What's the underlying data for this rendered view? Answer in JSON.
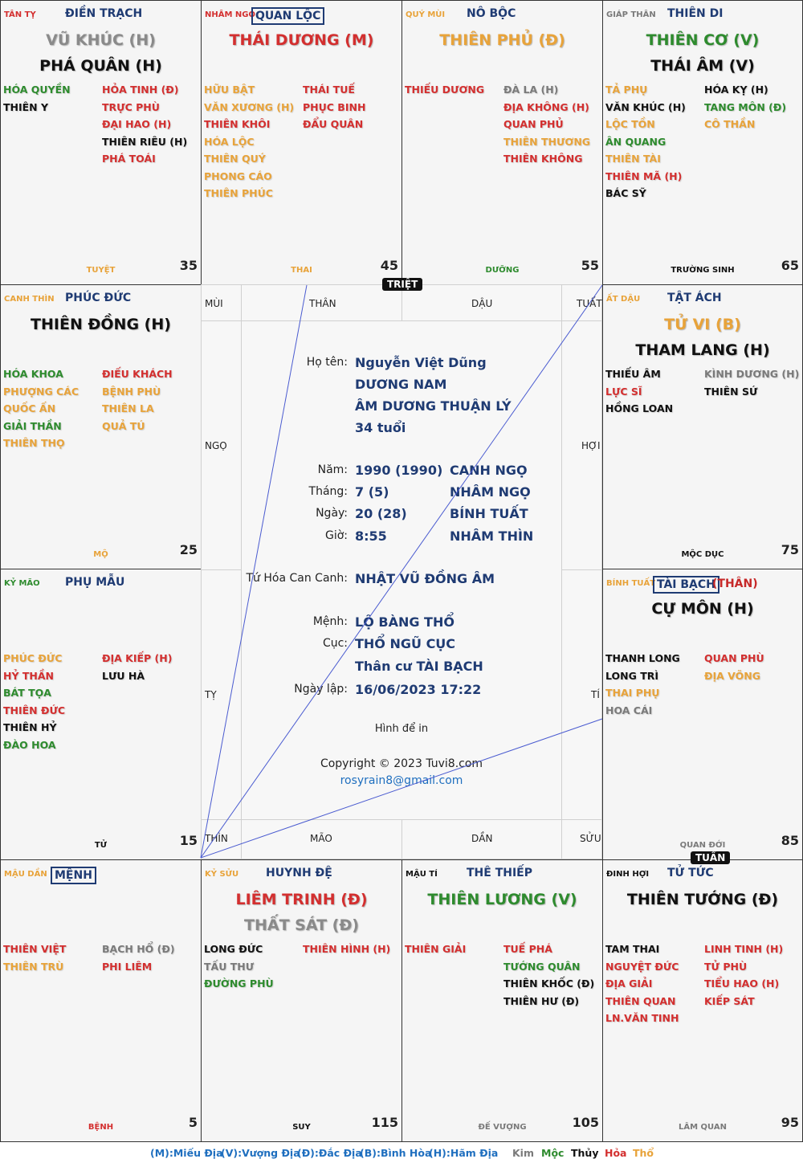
{
  "palaces": [
    {
      "can": "TÂN TỴ",
      "can_color": "#d32f2f",
      "name": "ĐIỀN TRẠCH",
      "boxed": false,
      "main": [
        {
          "text": "VŨ KHÚC (H)",
          "color": "#8a8a8a"
        },
        {
          "text": "PHÁ QUÂN (H)",
          "color": "#111111"
        }
      ],
      "left": [
        {
          "text": "HÓA QUYỀN",
          "color": "#2e8b2e"
        },
        {
          "text": "THIÊN Y",
          "color": "#111111"
        }
      ],
      "right": [
        {
          "text": "HỎA TINH (Đ)",
          "color": "#d32f2f"
        },
        {
          "text": "TRỰC PHÙ",
          "color": "#d32f2f"
        },
        {
          "text": "ĐẠI HAO (H)",
          "color": "#d32f2f"
        },
        {
          "text": "THIÊN RIÊU (H)",
          "color": "#111111"
        },
        {
          "text": "PHÁ TOÁI",
          "color": "#d32f2f"
        }
      ],
      "stage": "TUYỆT",
      "stage_color": "#e8a33a",
      "age": "35"
    },
    {
      "can": "NHÂM NGỌ",
      "can_color": "#d32f2f",
      "name": "QUAN LỘC",
      "boxed": true,
      "main": [
        {
          "text": "THÁI DƯƠNG (M)",
          "color": "#d32f2f"
        }
      ],
      "left": [
        {
          "text": "HỮU BẬT",
          "color": "#e8a33a"
        },
        {
          "text": "VĂN XƯƠNG (H)",
          "color": "#e8a33a"
        },
        {
          "text": "THIÊN KHÔI",
          "color": "#d32f2f"
        },
        {
          "text": "HÓA LỘC",
          "color": "#e8a33a"
        },
        {
          "text": "THIÊN QUÝ",
          "color": "#e8a33a"
        },
        {
          "text": "PHONG CÁO",
          "color": "#e8a33a"
        },
        {
          "text": "THIÊN PHÚC",
          "color": "#e8a33a"
        }
      ],
      "right": [
        {
          "text": "THÁI TUẾ",
          "color": "#d32f2f"
        },
        {
          "text": "PHỤC BINH",
          "color": "#d32f2f"
        },
        {
          "text": "ĐẨU QUÂN",
          "color": "#d32f2f"
        }
      ],
      "stage": "THAI",
      "stage_color": "#e8a33a",
      "age": "45"
    },
    {
      "can": "QUÝ MÙI",
      "can_color": "#e8a33a",
      "name": "NÔ BỘC",
      "boxed": false,
      "main": [
        {
          "text": "THIÊN PHỦ (Đ)",
          "color": "#e8a33a"
        }
      ],
      "left": [
        {
          "text": "THIẾU DƯƠNG",
          "color": "#d32f2f"
        }
      ],
      "right": [
        {
          "text": "ĐÀ LA (H)",
          "color": "#7a7a7a"
        },
        {
          "text": "ĐỊA KHÔNG (H)",
          "color": "#d32f2f"
        },
        {
          "text": "QUAN PHỦ",
          "color": "#d32f2f"
        },
        {
          "text": "THIÊN THƯƠNG",
          "color": "#e8a33a"
        },
        {
          "text": "THIÊN KHÔNG",
          "color": "#d32f2f"
        }
      ],
      "stage": "DƯỠNG",
      "stage_color": "#2e8b2e",
      "age": "55"
    },
    {
      "can": "GIÁP THÂN",
      "can_color": "#7a7a7a",
      "name": "THIÊN DI",
      "boxed": false,
      "main": [
        {
          "text": "THIÊN CƠ (V)",
          "color": "#2e8b2e"
        },
        {
          "text": "THÁI ÂM (V)",
          "color": "#111111"
        }
      ],
      "left": [
        {
          "text": "TẢ PHỤ",
          "color": "#e8a33a"
        },
        {
          "text": "VĂN KHÚC (H)",
          "color": "#111111"
        },
        {
          "text": "LỘC TỒN",
          "color": "#e8a33a"
        },
        {
          "text": "ÂN QUANG",
          "color": "#2e8b2e"
        },
        {
          "text": "THIÊN TÀI",
          "color": "#e8a33a"
        },
        {
          "text": "THIÊN MÃ (H)",
          "color": "#d32f2f"
        },
        {
          "text": "BÁC SỸ",
          "color": "#111111"
        }
      ],
      "right": [
        {
          "text": "HÓA KỴ (H)",
          "color": "#111111"
        },
        {
          "text": "TANG MÔN (Đ)",
          "color": "#2e8b2e"
        },
        {
          "text": "CÔ THẦN",
          "color": "#e8a33a"
        }
      ],
      "stage": "TRƯỜNG SINH",
      "stage_color": "#111111",
      "age": "65"
    },
    {
      "can": "CANH THÌN",
      "can_color": "#e8a33a",
      "name": "PHÚC ĐỨC",
      "boxed": false,
      "main": [
        {
          "text": "THIÊN ĐỒNG (H)",
          "color": "#111111"
        }
      ],
      "left": [
        {
          "text": "HÓA KHOA",
          "color": "#2e8b2e"
        },
        {
          "text": "PHƯỢNG CÁC",
          "color": "#e8a33a"
        },
        {
          "text": "QUỐC ẤN",
          "color": "#e8a33a"
        },
        {
          "text": "GIẢI THẦN",
          "color": "#2e8b2e"
        },
        {
          "text": "THIÊN THỌ",
          "color": "#e8a33a"
        }
      ],
      "right": [
        {
          "text": "ĐIẾU KHÁCH",
          "color": "#d32f2f"
        },
        {
          "text": "BỆNH PHÙ",
          "color": "#e8a33a"
        },
        {
          "text": "THIÊN LA",
          "color": "#e8a33a"
        },
        {
          "text": "QUẢ TÚ",
          "color": "#e8a33a"
        }
      ],
      "stage": "MỘ",
      "stage_color": "#e8a33a",
      "age": "25"
    },
    {
      "can": "ẤT DẬU",
      "can_color": "#e8a33a",
      "name": "TẬT ÁCH",
      "boxed": false,
      "main": [
        {
          "text": "TỬ VI (B)",
          "color": "#e8a33a"
        },
        {
          "text": "THAM LANG (H)",
          "color": "#111111"
        }
      ],
      "left": [
        {
          "text": "THIẾU ÂM",
          "color": "#111111"
        },
        {
          "text": "LỰC SĨ",
          "color": "#d32f2f"
        },
        {
          "text": "HỒNG LOAN",
          "color": "#111111"
        }
      ],
      "right": [
        {
          "text": "KÌNH DƯƠNG (H)",
          "color": "#7a7a7a"
        },
        {
          "text": "THIÊN SỨ",
          "color": "#111111"
        }
      ],
      "stage": "MỘC DỤC",
      "stage_color": "#111111",
      "age": "75"
    },
    {
      "can": "KỶ MÃO",
      "can_color": "#2e8b2e",
      "name": "PHỤ MẪU",
      "boxed": false,
      "main": [],
      "left": [
        {
          "text": "PHÚC ĐỨC",
          "color": "#e8a33a"
        },
        {
          "text": "HỶ THẦN",
          "color": "#d32f2f"
        },
        {
          "text": "BÁT TỌA",
          "color": "#2e8b2e"
        },
        {
          "text": "THIÊN ĐỨC",
          "color": "#d32f2f"
        },
        {
          "text": "THIÊN HỶ",
          "color": "#111111"
        },
        {
          "text": "ĐÀO HOA",
          "color": "#2e8b2e"
        }
      ],
      "right": [
        {
          "text": "ĐỊA KIẾP (H)",
          "color": "#d32f2f"
        },
        {
          "text": "LƯU HÀ",
          "color": "#111111"
        }
      ],
      "stage": "TỬ",
      "stage_color": "#111111",
      "age": "15"
    },
    {
      "can": "BÍNH TUẤT",
      "can_color": "#e8a33a",
      "name": "TÀI BẠCH",
      "boxed": true,
      "than": "(THÂN)",
      "main": [
        {
          "text": "CỰ MÔN (H)",
          "color": "#111111"
        }
      ],
      "left": [
        {
          "text": "THANH LONG",
          "color": "#111111"
        },
        {
          "text": "LONG TRÌ",
          "color": "#111111"
        },
        {
          "text": "THAI PHỤ",
          "color": "#e8a33a"
        },
        {
          "text": "HOA CÁI",
          "color": "#7a7a7a"
        }
      ],
      "right": [
        {
          "text": "QUAN PHÙ",
          "color": "#d32f2f"
        },
        {
          "text": "ĐỊA VÕNG",
          "color": "#e8a33a"
        }
      ],
      "stage": "QUAN ĐỚI",
      "stage_color": "#7a7a7a",
      "age": "85"
    },
    {
      "can": "MẬU DẦN",
      "can_color": "#e8a33a",
      "name": "MỆNH",
      "boxed": true,
      "main": [],
      "left": [
        {
          "text": "THIÊN VIỆT",
          "color": "#d32f2f"
        },
        {
          "text": "THIÊN TRÙ",
          "color": "#e8a33a"
        }
      ],
      "right": [
        {
          "text": "BẠCH HỔ (Đ)",
          "color": "#7a7a7a"
        },
        {
          "text": "PHI LIÊM",
          "color": "#d32f2f"
        }
      ],
      "stage": "BỆNH",
      "stage_color": "#d32f2f",
      "age": "5"
    },
    {
      "can": "KỶ SỬU",
      "can_color": "#e8a33a",
      "name": "HUYNH ĐỆ",
      "boxed": false,
      "main": [
        {
          "text": "LIÊM TRINH (Đ)",
          "color": "#d32f2f"
        },
        {
          "text": "THẤT SÁT (Đ)",
          "color": "#8a8a8a"
        }
      ],
      "left": [
        {
          "text": "LONG ĐỨC",
          "color": "#111111"
        },
        {
          "text": "TẤU THƯ",
          "color": "#7a7a7a"
        },
        {
          "text": "ĐƯỜNG PHÙ",
          "color": "#2e8b2e"
        }
      ],
      "right": [
        {
          "text": "THIÊN HÌNH (H)",
          "color": "#d32f2f"
        }
      ],
      "stage": "SUY",
      "stage_color": "#111111",
      "age": "115"
    },
    {
      "can": "MẬU TÍ",
      "can_color": "#111111",
      "name": "THÊ THIẾP",
      "boxed": false,
      "main": [
        {
          "text": "THIÊN LƯƠNG (V)",
          "color": "#2e8b2e"
        }
      ],
      "left": [
        {
          "text": "THIÊN GIẢI",
          "color": "#d32f2f"
        }
      ],
      "right": [
        {
          "text": "TUẾ PHÁ",
          "color": "#d32f2f"
        },
        {
          "text": "TƯỚNG QUÂN",
          "color": "#2e8b2e"
        },
        {
          "text": "THIÊN KHỐC (Đ)",
          "color": "#111111"
        },
        {
          "text": "THIÊN HƯ (Đ)",
          "color": "#111111"
        }
      ],
      "stage": "ĐẾ VƯỢNG",
      "stage_color": "#7a7a7a",
      "age": "105"
    },
    {
      "can": "ĐINH HỢI",
      "can_color": "#111111",
      "name": "TỬ TỨC",
      "boxed": false,
      "main": [
        {
          "text": "THIÊN TƯỚNG (Đ)",
          "color": "#111111"
        }
      ],
      "left": [
        {
          "text": "TAM THAI",
          "color": "#111111"
        },
        {
          "text": "NGUYỆT ĐỨC",
          "color": "#d32f2f"
        },
        {
          "text": "ĐỊA GIẢI",
          "color": "#d32f2f"
        },
        {
          "text": "THIÊN QUAN",
          "color": "#d32f2f"
        },
        {
          "text": "LN.VĂN TINH",
          "color": "#d32f2f"
        }
      ],
      "right": [
        {
          "text": "LINH TINH (H)",
          "color": "#d32f2f"
        },
        {
          "text": "TỬ PHÙ",
          "color": "#d32f2f"
        },
        {
          "text": "TIỂU HAO (H)",
          "color": "#d32f2f"
        },
        {
          "text": "KIẾP SÁT",
          "color": "#d32f2f"
        }
      ],
      "stage": "LÂM QUAN",
      "stage_color": "#7a7a7a",
      "age": "95"
    }
  ],
  "center": {
    "ring_labels": {
      "mui": "MÙI",
      "than": "THÂN",
      "dau": "DẬU",
      "tuat": "TUẤT",
      "ngo": "NGỌ",
      "hoi": "HỢI",
      "ty": "TỴ",
      "ti": "TÍ",
      "thin": "THÌN",
      "mao": "MÃO",
      "dan": "DẦN",
      "suu": "SỬU"
    },
    "labels": {
      "name": "Họ tên:",
      "year": "Năm:",
      "month": "Tháng:",
      "day": "Ngày:",
      "hour": "Giờ:",
      "tuhoa": "Tứ Hóa Can Canh:",
      "menh": "Mệnh:",
      "cuc": "Cục:",
      "created": "Ngày lập:"
    },
    "name": "Nguyễn Việt Dũng",
    "gender": "DƯƠNG NAM",
    "amduong": "ÂM DƯƠNG THUẬN LÝ",
    "age": "34 tuổi",
    "year_val": "1990 (1990)",
    "year_can": "CANH NGỌ",
    "month_val": "7 (5)",
    "month_can": "NHÂM NGỌ",
    "day_val": "20 (28)",
    "day_can": "BÍNH TUẤT",
    "hour_val": "8:55",
    "hour_can": "NHÂM THÌN",
    "tuhoa": "NHẬT VŨ ĐỒNG ÂM",
    "menh": "LỘ BÀNG THỔ",
    "cuc": "THỔ NGŨ CỤC",
    "than_cu": "Thân cư TÀI BẠCH",
    "created": "16/06/2023 17:22",
    "print": "Hình để in",
    "copyright": "Copyright © 2023 Tuvi8.com",
    "email": "rosyrain8@gmail.com"
  },
  "tags": {
    "triet": "TRIỆT",
    "tuan": "TUẦN"
  },
  "legend": {
    "items": [
      {
        "text": "(M):Miếu Địa"
      },
      {
        "text": "(V):Vượng Địa"
      },
      {
        "text": "(Đ):Đắc Địa"
      },
      {
        "text": "(B):Bình Hòa"
      },
      {
        "text": "(H):Hãm Địa"
      }
    ],
    "elements": [
      {
        "text": "Kim",
        "color": "#7a7a7a"
      },
      {
        "text": "Mộc",
        "color": "#2e8b2e"
      },
      {
        "text": "Thủy",
        "color": "#111111"
      },
      {
        "text": "Hỏa",
        "color": "#d32f2f"
      },
      {
        "text": "Thổ",
        "color": "#e8a33a"
      }
    ]
  },
  "colors": {
    "navy": "#1f3b73",
    "line": "#4a5bd0",
    "border": "#333333"
  }
}
